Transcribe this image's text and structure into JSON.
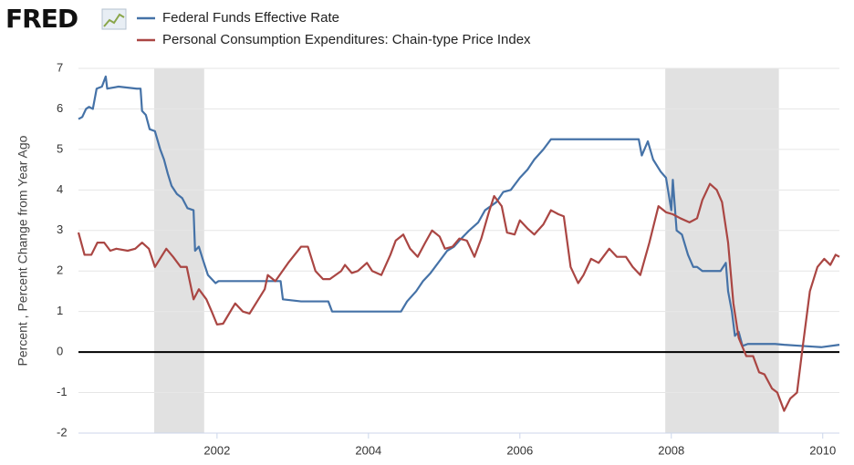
{
  "logo": "FRED",
  "chart_data": {
    "type": "line",
    "y_axis_label": "Percent , Percent Change from Year Ago",
    "xlim": [
      2000.17,
      2010.22
    ],
    "xticks": [
      2002,
      2004,
      2006,
      2008,
      2010
    ],
    "ylim": [
      -2,
      7
    ],
    "yticks": [
      -2,
      -1,
      0,
      1,
      2,
      3,
      4,
      5,
      6,
      7
    ],
    "grid": true,
    "legend": "top",
    "recessions": [
      [
        2001.17,
        2001.83
      ],
      [
        2007.92,
        2009.42
      ]
    ],
    "series": [
      {
        "name": "Federal Funds Effective Rate",
        "color": "#4572a7",
        "x": [
          2000.17,
          2000.22,
          2000.27,
          2000.31,
          2000.36,
          2000.41,
          2000.48,
          2000.53,
          2000.55,
          2000.7,
          2000.94,
          2000.99,
          2001.01,
          2001.06,
          2001.11,
          2001.18,
          2001.25,
          2001.3,
          2001.35,
          2001.4,
          2001.47,
          2001.54,
          2001.61,
          2001.69,
          2001.71,
          2001.76,
          2001.81,
          2001.88,
          2001.98,
          2002.02,
          2002.27,
          2002.51,
          2002.84,
          2002.87,
          2003.11,
          2003.47,
          2003.52,
          2004.43,
          2004.51,
          2004.63,
          2004.72,
          2004.82,
          2004.94,
          2005.04,
          2005.13,
          2005.2,
          2005.33,
          2005.45,
          2005.54,
          2005.69,
          2005.78,
          2005.88,
          2006.0,
          2006.1,
          2006.19,
          2006.31,
          2006.41,
          2006.55,
          2007.08,
          2007.57,
          2007.61,
          2007.69,
          2007.76,
          2007.86,
          2007.93,
          2008.0,
          2008.02,
          2008.07,
          2008.14,
          2008.22,
          2008.29,
          2008.34,
          2008.41,
          2008.65,
          2008.72,
          2008.75,
          2008.8,
          2008.84,
          2008.89,
          2008.94,
          2009.01,
          2009.37,
          2009.49,
          2009.73,
          2009.98,
          2010.22
        ],
        "values": [
          5.75,
          5.8,
          6.0,
          6.05,
          6.0,
          6.5,
          6.55,
          6.8,
          6.5,
          6.55,
          6.5,
          6.5,
          5.95,
          5.85,
          5.5,
          5.45,
          5.0,
          4.75,
          4.4,
          4.1,
          3.9,
          3.8,
          3.55,
          3.5,
          2.5,
          2.6,
          2.3,
          1.9,
          1.7,
          1.75,
          1.75,
          1.75,
          1.75,
          1.3,
          1.25,
          1.25,
          1.0,
          1.0,
          1.25,
          1.5,
          1.75,
          1.95,
          2.25,
          2.5,
          2.6,
          2.75,
          3.0,
          3.2,
          3.5,
          3.7,
          3.95,
          4.0,
          4.3,
          4.5,
          4.75,
          5.0,
          5.25,
          5.25,
          5.25,
          5.25,
          4.85,
          5.2,
          4.75,
          4.45,
          4.3,
          3.5,
          4.25,
          3.0,
          2.9,
          2.4,
          2.1,
          2.1,
          2.0,
          2.0,
          2.2,
          1.5,
          1.0,
          0.4,
          0.5,
          0.15,
          0.2,
          0.2,
          0.18,
          0.15,
          0.12,
          0.18
        ]
      },
      {
        "name": "Personal Consumption Expenditures: Chain-type Price Index",
        "color": "#aa4643",
        "x": [
          2000.17,
          2000.25,
          2000.34,
          2000.42,
          2000.51,
          2000.59,
          2000.67,
          2000.82,
          2000.92,
          2001.01,
          2001.1,
          2001.18,
          2001.33,
          2001.42,
          2001.52,
          2001.6,
          2001.69,
          2001.76,
          2001.86,
          2001.93,
          2002.0,
          2002.08,
          2002.24,
          2002.34,
          2002.43,
          2002.53,
          2002.63,
          2002.67,
          2002.77,
          2002.94,
          2003.11,
          2003.2,
          2003.3,
          2003.4,
          2003.49,
          2003.64,
          2003.69,
          2003.78,
          2003.86,
          2003.98,
          2004.05,
          2004.17,
          2004.29,
          2004.36,
          2004.46,
          2004.55,
          2004.65,
          2004.75,
          2004.84,
          2004.94,
          2005.01,
          2005.11,
          2005.2,
          2005.3,
          2005.4,
          2005.49,
          2005.59,
          2005.66,
          2005.76,
          2005.83,
          2005.93,
          2006.0,
          2006.1,
          2006.19,
          2006.31,
          2006.41,
          2006.51,
          2006.58,
          2006.67,
          2006.77,
          2006.84,
          2006.94,
          2007.04,
          2007.18,
          2007.28,
          2007.4,
          2007.49,
          2007.59,
          2007.71,
          2007.83,
          2007.93,
          2008.02,
          2008.12,
          2008.24,
          2008.34,
          2008.41,
          2008.51,
          2008.6,
          2008.67,
          2008.75,
          2008.82,
          2008.89,
          2008.99,
          2009.08,
          2009.16,
          2009.23,
          2009.33,
          2009.4,
          2009.49,
          2009.57,
          2009.66,
          2009.73,
          2009.83,
          2009.93,
          2010.02,
          2010.1,
          2010.17,
          2010.22
        ],
        "values": [
          2.95,
          2.4,
          2.4,
          2.7,
          2.7,
          2.5,
          2.55,
          2.5,
          2.55,
          2.7,
          2.55,
          2.1,
          2.55,
          2.35,
          2.1,
          2.1,
          1.3,
          1.55,
          1.3,
          1.0,
          0.68,
          0.7,
          1.2,
          1.0,
          0.95,
          1.25,
          1.55,
          1.9,
          1.75,
          2.2,
          2.6,
          2.6,
          2.0,
          1.8,
          1.8,
          2.0,
          2.15,
          1.95,
          2.0,
          2.2,
          2.0,
          1.9,
          2.4,
          2.75,
          2.9,
          2.55,
          2.35,
          2.7,
          3.0,
          2.85,
          2.55,
          2.6,
          2.8,
          2.75,
          2.35,
          2.8,
          3.45,
          3.85,
          3.6,
          2.95,
          2.9,
          3.25,
          3.05,
          2.9,
          3.15,
          3.5,
          3.4,
          3.35,
          2.1,
          1.7,
          1.9,
          2.3,
          2.2,
          2.55,
          2.35,
          2.35,
          2.1,
          1.9,
          2.7,
          3.6,
          3.45,
          3.4,
          3.3,
          3.2,
          3.3,
          3.75,
          4.15,
          4.0,
          3.7,
          2.7,
          1.2,
          0.35,
          -0.1,
          -0.1,
          -0.5,
          -0.55,
          -0.9,
          -1.0,
          -1.45,
          -1.15,
          -1.0,
          0.05,
          1.5,
          2.1,
          2.3,
          2.15,
          2.4,
          2.35
        ]
      }
    ]
  }
}
